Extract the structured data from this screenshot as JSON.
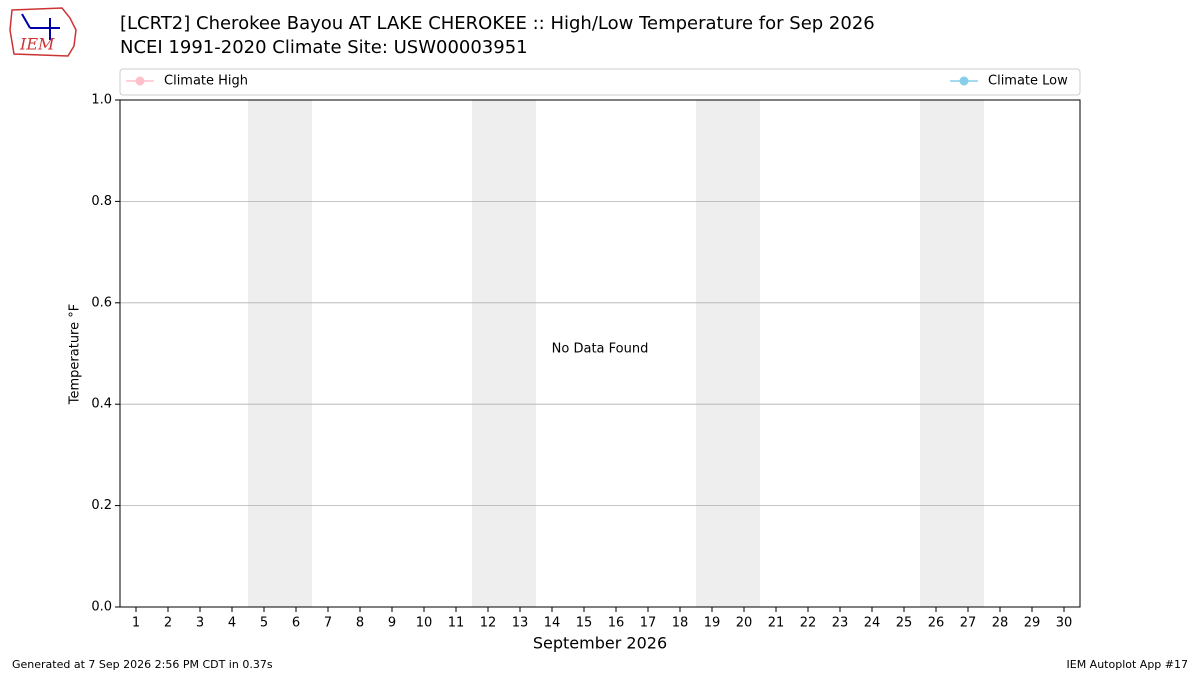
{
  "chart_data": {
    "type": "line",
    "title": "[LCRT2] Cherokee Bayou  AT LAKE CHEROKEE :: High/Low Temperature for Sep 2026",
    "subtitle": "NCEI 1991-2020 Climate Site: USW00003951",
    "xlabel": "September 2026",
    "ylabel": "Temperature °F",
    "annotation": "No Data Found",
    "footer_left": "Generated at 7 Sep 2026 2:56 PM CDT in 0.37s",
    "footer_right": "IEM Autoplot App #17",
    "logo_text": "IEM",
    "series": [
      {
        "name": "Climate High",
        "color": "#ffc0cb"
      },
      {
        "name": "Climate Low",
        "color": "#87ceeb"
      }
    ],
    "xlim": [
      0.5,
      30.5
    ],
    "xticks": [
      1,
      2,
      3,
      4,
      5,
      6,
      7,
      8,
      9,
      10,
      11,
      12,
      13,
      14,
      15,
      16,
      17,
      18,
      19,
      20,
      21,
      22,
      23,
      24,
      25,
      26,
      27,
      28,
      29,
      30
    ],
    "ylim": [
      0,
      1
    ],
    "yticks": [
      {
        "value": 0,
        "label": "0.0"
      },
      {
        "value": 0.2,
        "label": "0.2"
      },
      {
        "value": 0.4,
        "label": "0.4"
      },
      {
        "value": 0.6,
        "label": "0.6"
      },
      {
        "value": 0.8,
        "label": "0.8"
      },
      {
        "value": 1,
        "label": "1.0"
      }
    ],
    "grid": true,
    "weekend_shading": [
      [
        5,
        6
      ],
      [
        12,
        13
      ],
      [
        19,
        20
      ],
      [
        26,
        27
      ]
    ],
    "shading_color": "#eeeeee"
  }
}
